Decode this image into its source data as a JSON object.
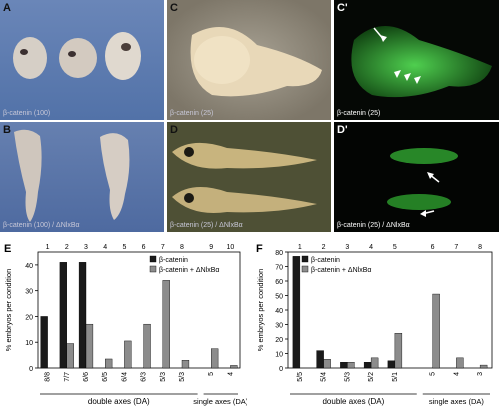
{
  "panels": {
    "A": {
      "label": "A",
      "caption": "β-catenin (100)"
    },
    "B": {
      "label": "B",
      "caption": "β-catenin (100) / ΔNlxBα"
    },
    "C": {
      "label": "C",
      "caption": "β-catenin (25)"
    },
    "Cp": {
      "label": "C'",
      "caption": "β-catenin (25)"
    },
    "D": {
      "label": "D",
      "caption": "β-catenin (25) / ΔNlxBα"
    },
    "Dp": {
      "label": "D'",
      "caption": "β-catenin (25) / ΔNlxBα"
    }
  },
  "colors": {
    "series1": "#1a1a1a",
    "series2": "#8c8c8c"
  },
  "chart_data": [
    {
      "panel": "E",
      "type": "bar",
      "ylabel": "% embryos per condition",
      "ylim": [
        0,
        45
      ],
      "yticks": [
        0,
        10,
        20,
        30,
        40
      ],
      "top_numbers": [
        "1",
        "2",
        "3",
        "4",
        "5",
        "6",
        "7",
        "8",
        "9",
        "10"
      ],
      "categories": [
        "8/8",
        "7/7",
        "6/6",
        "6/5",
        "6/4",
        "6/3",
        "5/3",
        "5/3",
        "5",
        "4"
      ],
      "series": [
        {
          "name": "β-catenin",
          "values": [
            20,
            41,
            41,
            0,
            0,
            0,
            0,
            0,
            0,
            0
          ]
        },
        {
          "name": "β-catenin + ΔNlxBα",
          "values": [
            0,
            9.5,
            17,
            3.5,
            10.5,
            17,
            34,
            3,
            7.5,
            1
          ]
        }
      ],
      "group_labels": [
        "double axes (DA)",
        "single axes (DA)"
      ]
    },
    {
      "panel": "F",
      "type": "bar",
      "ylabel": "% embryos per condition",
      "ylim": [
        0,
        80
      ],
      "yticks": [
        0,
        10,
        20,
        30,
        40,
        50,
        60,
        70,
        80
      ],
      "top_numbers": [
        "1",
        "2",
        "3",
        "4",
        "5",
        "6",
        "7",
        "8"
      ],
      "categories": [
        "5/5",
        "5/4",
        "5/3",
        "5/2",
        "5/1",
        "5",
        "4",
        "3"
      ],
      "series": [
        {
          "name": "β-catenin",
          "values": [
            77,
            12,
            4,
            4,
            5,
            0,
            0,
            0
          ]
        },
        {
          "name": "β-catenin + ΔNlxBα",
          "values": [
            0,
            6,
            4,
            7,
            24,
            51,
            7,
            2
          ]
        }
      ],
      "group_labels": [
        "double axes (DA)",
        "single axes (DA)"
      ]
    }
  ]
}
